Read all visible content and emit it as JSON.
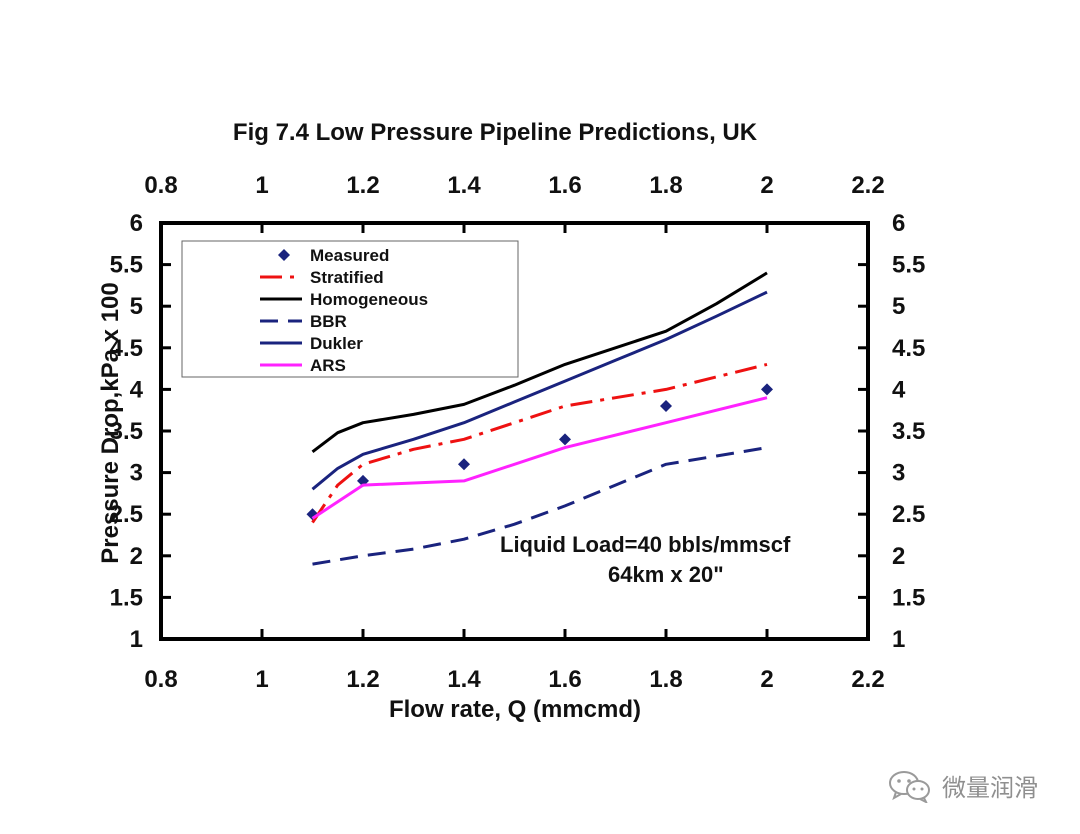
{
  "chart_data": {
    "type": "line",
    "title": "Fig 7.4  Low Pressure Pipeline Predictions, UK",
    "xlabel": "Flow rate, Q (mmcmd)",
    "ylabel": "Pressure Drop,kPa x 100",
    "xlim": [
      0.8,
      2.2
    ],
    "ylim": [
      1,
      6
    ],
    "x_ticks": [
      "0.8",
      "1",
      "1.2",
      "1.4",
      "1.6",
      "1.8",
      "2",
      "2.2"
    ],
    "y_ticks": [
      "1",
      "1.5",
      "2",
      "2.5",
      "3",
      "3.5",
      "4",
      "4.5",
      "5",
      "5.5",
      "6"
    ],
    "grid": false,
    "legend_position": "top-left",
    "annotation": [
      "Liquid Load=40 bbls/mmscf",
      "64km x 20\""
    ],
    "series": [
      {
        "name": "Measured",
        "kind": "marker",
        "color": "#1a237e",
        "x": [
          1.1,
          1.2,
          1.4,
          1.6,
          1.8,
          2.0
        ],
        "y": [
          2.5,
          2.9,
          3.1,
          3.4,
          3.8,
          4.0
        ]
      },
      {
        "name": "Stratified",
        "kind": "dashed",
        "color": "#ee1111",
        "x": [
          1.1,
          1.15,
          1.2,
          1.3,
          1.4,
          1.5,
          1.6,
          1.7,
          1.8,
          1.9,
          2.0
        ],
        "y": [
          2.4,
          2.85,
          3.1,
          3.28,
          3.4,
          3.6,
          3.8,
          3.9,
          4.0,
          4.15,
          4.3
        ]
      },
      {
        "name": "Homogeneous",
        "kind": "solid",
        "color": "#000000",
        "x": [
          1.1,
          1.15,
          1.2,
          1.3,
          1.4,
          1.5,
          1.6,
          1.7,
          1.8,
          1.9,
          2.0
        ],
        "y": [
          3.25,
          3.48,
          3.6,
          3.7,
          3.82,
          4.05,
          4.3,
          4.5,
          4.7,
          5.03,
          5.4
        ]
      },
      {
        "name": "BBR",
        "kind": "dashed",
        "color": "#1a237e",
        "x": [
          1.1,
          1.2,
          1.3,
          1.4,
          1.5,
          1.6,
          1.7,
          1.8,
          1.9,
          2.0
        ],
        "y": [
          1.9,
          2.0,
          2.08,
          2.2,
          2.38,
          2.6,
          2.85,
          3.1,
          3.2,
          3.3
        ]
      },
      {
        "name": "Dukler",
        "kind": "solid",
        "color": "#1a237e",
        "x": [
          1.1,
          1.15,
          1.2,
          1.3,
          1.4,
          1.5,
          1.6,
          1.7,
          1.8,
          1.9,
          2.0
        ],
        "y": [
          2.8,
          3.05,
          3.22,
          3.4,
          3.6,
          3.85,
          4.1,
          4.35,
          4.6,
          4.88,
          5.17
        ]
      },
      {
        "name": "ARS",
        "kind": "solid",
        "color": "#ff22ff",
        "x": [
          1.1,
          1.2,
          1.4,
          1.6,
          1.8,
          2.0
        ],
        "y": [
          2.45,
          2.85,
          2.9,
          3.3,
          3.6,
          3.9
        ]
      }
    ]
  },
  "watermark": {
    "text": "微量润滑",
    "icon": "wechat-icon"
  }
}
